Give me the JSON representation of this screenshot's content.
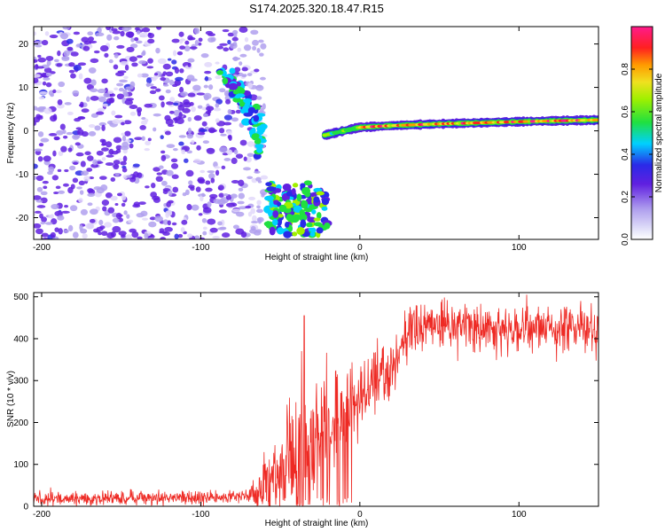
{
  "title": "S174.2025.320.18.47.R15",
  "chart_data": [
    {
      "type": "heatmap",
      "name": "spectrogram",
      "xlabel": "Height of straight line (km)",
      "ylabel": "Frequency (Hz)",
      "xlim": [
        -205,
        150
      ],
      "ylim": [
        -25,
        24
      ],
      "xticks": [
        -200,
        -100,
        0,
        100
      ],
      "yticks": [
        -20,
        -10,
        0,
        10,
        20
      ],
      "colorbar": {
        "label": "Normalized spectral amplitude",
        "range": [
          0.0,
          1.0
        ],
        "ticks": [
          0.0,
          0.2,
          0.4,
          0.6,
          0.8
        ]
      },
      "features": [
        {
          "label": "diffuse noise",
          "x_range": [
            -205,
            -60
          ],
          "f_range": [
            -25,
            24
          ],
          "amplitude": 0.15
        },
        {
          "label": "descending trace",
          "x": [
            -86,
            -78,
            -72,
            -65,
            -62
          ],
          "f": [
            14,
            10,
            6,
            2,
            -4
          ],
          "amplitude": 0.35
        },
        {
          "label": "low-frequency cluster",
          "x_range": [
            -58,
            -20
          ],
          "f_range": [
            -24,
            -12
          ],
          "amplitude": 0.35
        },
        {
          "label": "carrier line",
          "x": [
            -22,
            -10,
            0,
            20,
            50,
            80,
            110,
            150
          ],
          "f": [
            -1,
            0,
            0.8,
            1.2,
            1.6,
            1.9,
            2.2,
            2.5
          ],
          "amplitude": 0.85
        }
      ]
    },
    {
      "type": "line",
      "name": "snr",
      "xlabel": "Height of straight line (km)",
      "ylabel": "SNR (10 * v/v)",
      "xlim": [
        -205,
        150
      ],
      "ylim": [
        0,
        510
      ],
      "xticks": [
        -200,
        -100,
        0,
        100
      ],
      "yticks": [
        0,
        100,
        200,
        300,
        400,
        500
      ],
      "color": "#ee2a24",
      "trend": {
        "x": [
          -205,
          -120,
          -80,
          -65,
          -55,
          -45,
          -35,
          -25,
          -15,
          -5,
          5,
          15,
          25,
          30,
          40,
          60,
          100,
          150
        ],
        "y": [
          18,
          20,
          22,
          30,
          75,
          105,
          135,
          170,
          205,
          240,
          275,
          310,
          360,
          420,
          430,
          430,
          425,
          425
        ]
      },
      "spread": {
        "x": [
          -205,
          -70,
          -60,
          -40,
          -25,
          -10,
          0,
          20,
          30,
          150
        ],
        "y": [
          8,
          8,
          35,
          70,
          80,
          60,
          45,
          35,
          30,
          30
        ]
      },
      "spike": {
        "x": -35,
        "y": 455
      },
      "samples": 1400
    }
  ],
  "colors": {
    "colormap": [
      "#e6e6fa",
      "#8a2be2",
      "#2a2ae8",
      "#00d0ff",
      "#20e040",
      "#f0e020",
      "#ff9a00",
      "#ff2020",
      "#ff1a8c"
    ],
    "line": "#ee2a24"
  }
}
